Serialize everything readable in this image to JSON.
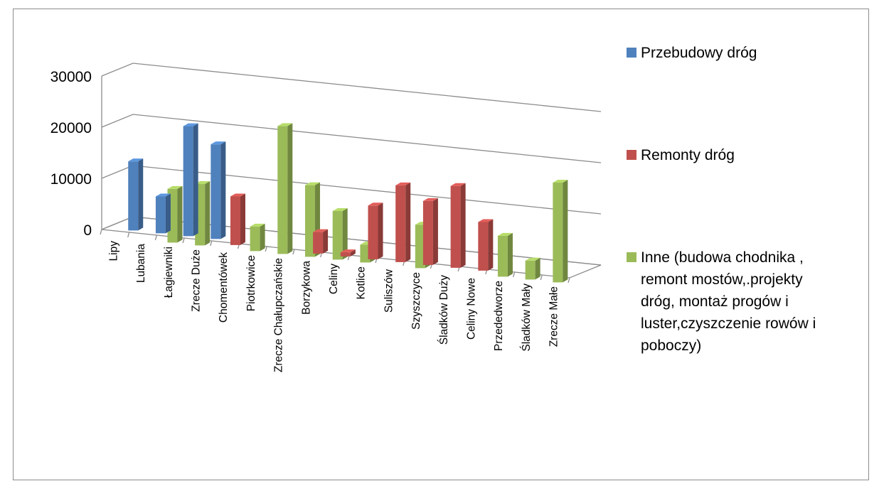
{
  "chart_data": {
    "type": "bar",
    "title": "",
    "xlabel": "",
    "ylabel": "",
    "ylim": [
      0,
      30000
    ],
    "yticks": [
      0,
      10000,
      20000,
      30000
    ],
    "grid": true,
    "legend_position": "right",
    "categories": [
      "Lipy",
      "Lubania",
      "Łagiewniki",
      "Zrecze Duże",
      "Chomentówek",
      "Piotrkowice",
      "Zrecze Chałupczańskie",
      "Borzykowa",
      "Celiny",
      "Kotlice",
      "Suliszów",
      "Szyszczyce",
      "Śladków Duży",
      "Celiny Nowe",
      "Przededworze",
      "Śladków Mały",
      "Zrecze Małe"
    ],
    "series": [
      {
        "name": "Przebudowy dróg",
        "color": "#4f81bd",
        "values": [
          13500,
          7200,
          21500,
          18500,
          0,
          0,
          0,
          0,
          0,
          0,
          0,
          0,
          0,
          0,
          0,
          0,
          0
        ]
      },
      {
        "name": "Remonty dróg",
        "color": "#c0504d",
        "values": [
          0,
          0,
          0,
          0,
          9500,
          0,
          0,
          4200,
          800,
          10500,
          15000,
          12500,
          16000,
          9500,
          0,
          0,
          0
        ]
      },
      {
        "name": "Inne (budowa chodnika , remont mostów,.projekty dróg, montaż progów i luster,czyszczenie rowów i poboczy)",
        "color": "#9bbb59",
        "values": [
          0,
          0,
          10500,
          12000,
          0,
          4800,
          25000,
          14000,
          9500,
          3500,
          0,
          8500,
          0,
          0,
          8000,
          3700,
          19500
        ]
      }
    ]
  },
  "legend": {
    "items": [
      {
        "label_lines": [
          "Przebudowy dróg"
        ]
      },
      {
        "label_lines": [
          "Remonty dróg"
        ]
      },
      {
        "label_lines": [
          "Inne (budowa chodnika ,",
          "remont mostów,.projekty",
          "dróg, montaż progów i",
          "luster,czyszczenie rowów i",
          "poboczy)"
        ]
      }
    ]
  }
}
